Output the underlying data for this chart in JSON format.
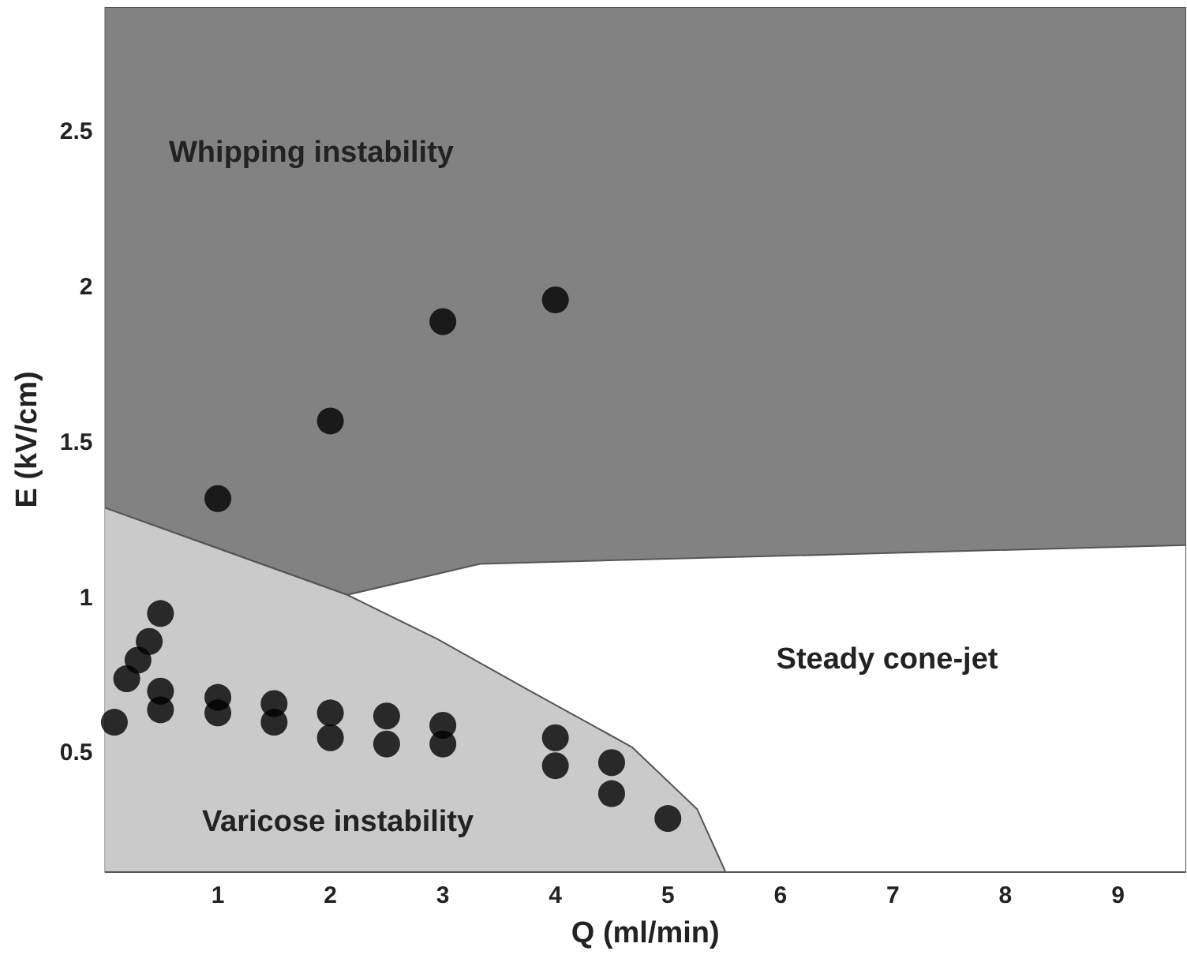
{
  "chart_data": {
    "type": "area",
    "xlabel": "Q (ml/min)",
    "ylabel": "E (kV/cm)",
    "xlim": [
      0,
      9.6
    ],
    "xticks": [
      1,
      2,
      3,
      4,
      5,
      6,
      7,
      8,
      9
    ],
    "ylim": [
      0.12,
      2.9
    ],
    "yticks": [
      0.5,
      1,
      1.5,
      2,
      2.5
    ],
    "grid": false,
    "bands": [
      {
        "axis": "y",
        "from": 0.12,
        "to": 2.9,
        "color": "#828282"
      }
    ],
    "series": [
      {
        "color": "#ffffff",
        "x": [
          0,
          2.15,
          3.33,
          9.6
        ],
        "values": [
          1.29,
          1.01,
          1.11,
          1.17
        ]
      },
      {
        "color": "#cacaca",
        "x": [
          0,
          2.15,
          2.94,
          3.78,
          4.68,
          5.26,
          5.51
        ],
        "values": [
          1.29,
          1.01,
          0.87,
          0.7,
          0.52,
          0.32,
          0.12
        ]
      },
      {
        "type": "scatter",
        "color": "#000000",
        "x": [
          0.08,
          0.19,
          0.29,
          0.39,
          0.49,
          0.49,
          0.49,
          1,
          1,
          1,
          1.5,
          1.5,
          2,
          2,
          2,
          2.5,
          2.5,
          3,
          3,
          3,
          4,
          4,
          4,
          4.5,
          4.5,
          5
        ],
        "values": [
          0.6,
          0.74,
          0.8,
          0.86,
          0.95,
          0.7,
          0.64,
          0.68,
          0.63,
          1.32,
          0.66,
          0.6,
          0.63,
          0.55,
          1.57,
          0.62,
          0.53,
          0.59,
          0.53,
          1.89,
          0.55,
          0.46,
          1.96,
          0.47,
          0.37,
          0.29
        ]
      }
    ],
    "annotations": [
      "Whipping instability",
      "Steady cone-jet",
      "Varicose instability"
    ]
  }
}
